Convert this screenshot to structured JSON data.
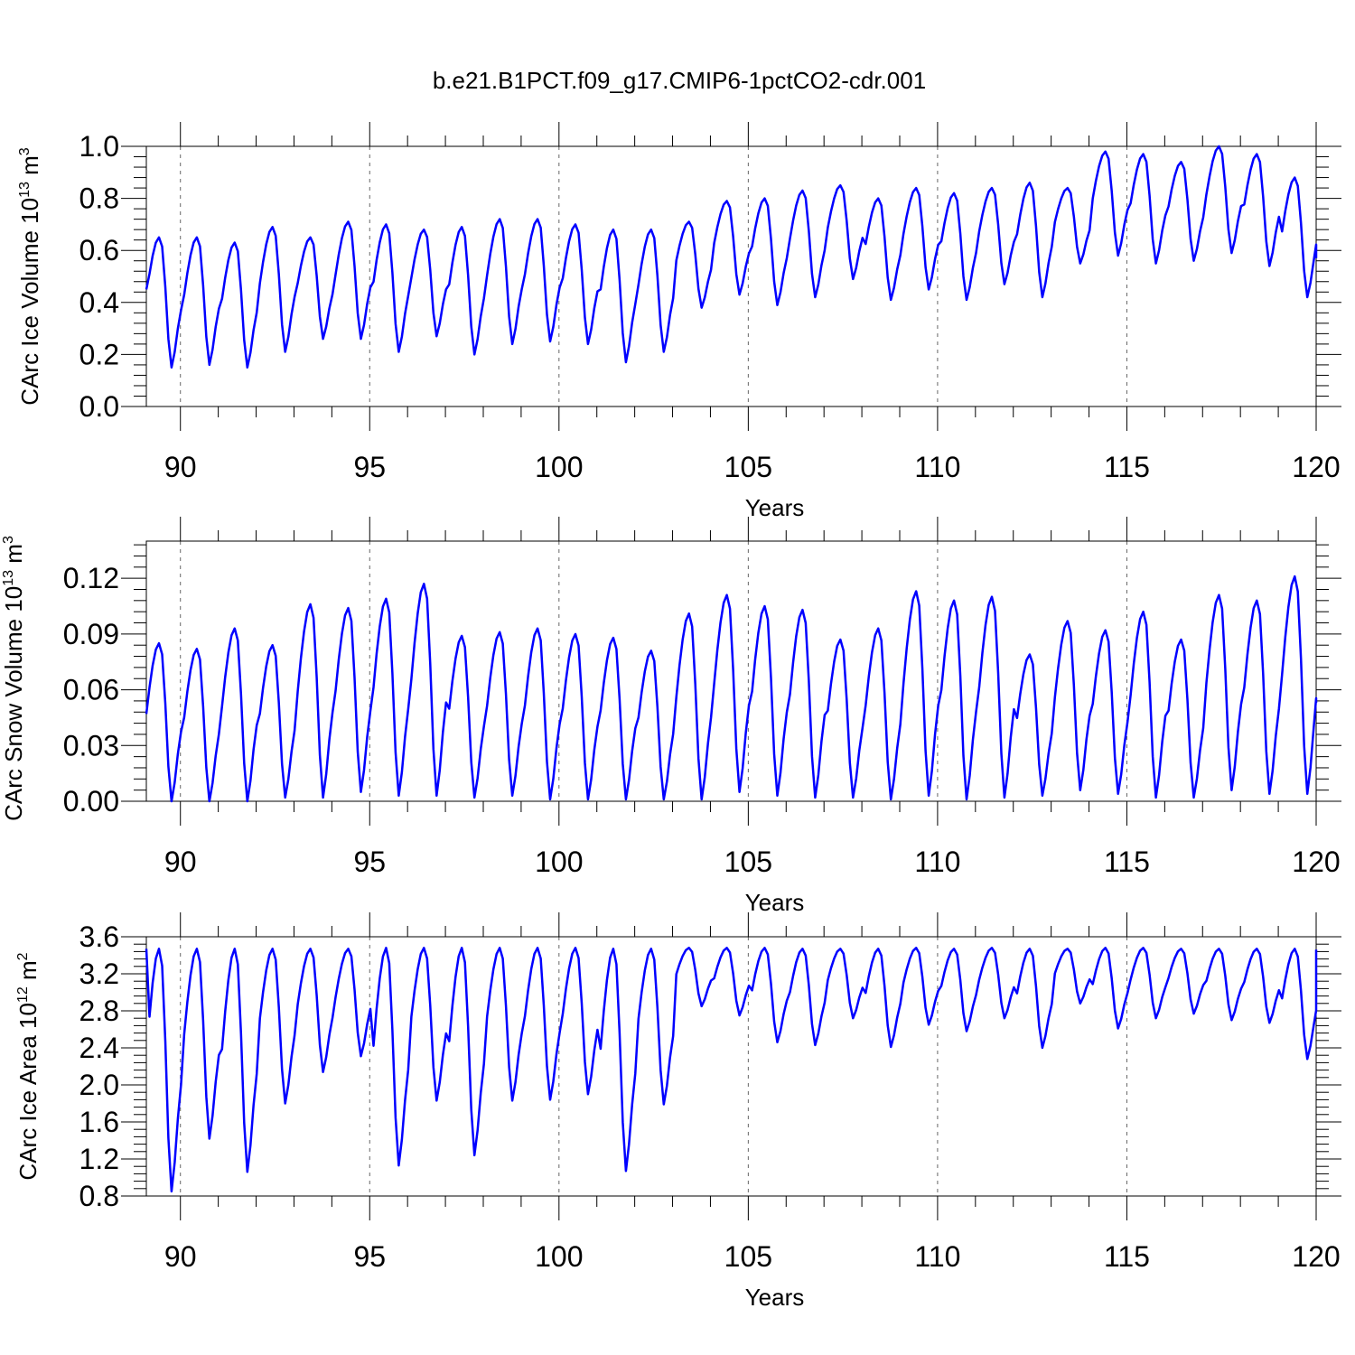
{
  "figure": {
    "title": "b.e21.B1PCT.f09_g17.CMIP6-1pctCO2-cdr.001",
    "series_color": "#0000ff",
    "grid_color": "#666666"
  },
  "chart_data": [
    {
      "type": "line",
      "title": "b.e21.B1PCT.f09_g17.CMIP6-1pctCO2-cdr.001",
      "xlabel": "Years",
      "ylabel": "CArc Ice Volume 10^13 m^3",
      "ylabel_parts": {
        "base": "CArc Ice Volume 10",
        "exp1": "13",
        "mid": " m",
        "exp2": "3"
      },
      "xlim": [
        89.1,
        120.0
      ],
      "ylim": [
        0.0,
        1.0
      ],
      "xticks": [
        90,
        95,
        100,
        105,
        110,
        115,
        120
      ],
      "xtick_labels": [
        "90",
        "95",
        "100",
        "105",
        "110",
        "115",
        "120"
      ],
      "yticks": [
        0.0,
        0.2,
        0.4,
        0.6,
        0.8,
        1.0
      ],
      "ytick_labels": [
        "0.0",
        "0.2",
        "0.4",
        "0.6",
        "0.8",
        "1.0"
      ],
      "grid": "dashed vertical at major x ticks",
      "series": [
        {
          "name": "CArc Ice Volume",
          "annual_min": [
            0.15,
            0.16,
            0.15,
            0.21,
            0.26,
            0.26,
            0.21,
            0.27,
            0.2,
            0.24,
            0.25,
            0.24,
            0.17,
            0.21,
            0.38,
            0.43,
            0.39,
            0.42,
            0.49,
            0.41,
            0.45,
            0.41,
            0.47,
            0.42,
            0.55,
            0.58,
            0.55,
            0.56,
            0.59,
            0.54,
            0.42
          ],
          "annual_max": [
            0.65,
            0.65,
            0.63,
            0.69,
            0.65,
            0.71,
            0.7,
            0.68,
            0.69,
            0.72,
            0.72,
            0.7,
            0.68,
            0.68,
            0.71,
            0.79,
            0.8,
            0.83,
            0.85,
            0.8,
            0.84,
            0.82,
            0.84,
            0.86,
            0.84,
            0.98,
            0.97,
            0.94,
            1.0,
            0.97,
            0.88
          ],
          "start_value": 0.45,
          "end_value": 0.57
        }
      ]
    },
    {
      "type": "line",
      "xlabel": "Years",
      "ylabel": "CArc Snow Volume 10^13 m^3",
      "ylabel_parts": {
        "base": "CArc Snow Volume 10",
        "exp1": "13",
        "mid": " m",
        "exp2": "3"
      },
      "xlim": [
        89.1,
        120.0
      ],
      "ylim": [
        0.0,
        0.14
      ],
      "xticks": [
        90,
        95,
        100,
        105,
        110,
        115,
        120
      ],
      "xtick_labels": [
        "90",
        "95",
        "100",
        "105",
        "110",
        "115",
        "120"
      ],
      "yticks": [
        0.0,
        0.03,
        0.06,
        0.09,
        0.12
      ],
      "ytick_labels": [
        "0.00",
        "0.03",
        "0.06",
        "0.09",
        "0.12"
      ],
      "grid": "dashed vertical at major x ticks",
      "series": [
        {
          "name": "CArc Snow Volume",
          "annual_min": [
            0.0,
            0.0,
            0.0,
            0.002,
            0.002,
            0.005,
            0.003,
            0.003,
            0.002,
            0.003,
            0.001,
            0.001,
            0.001,
            0.001,
            0.001,
            0.005,
            0.003,
            0.002,
            0.002,
            0.001,
            0.003,
            0.001,
            0.002,
            0.003,
            0.006,
            0.004,
            0.002,
            0.002,
            0.006,
            0.004,
            0.004
          ],
          "annual_max": [
            0.085,
            0.082,
            0.093,
            0.084,
            0.106,
            0.104,
            0.109,
            0.117,
            0.089,
            0.091,
            0.093,
            0.09,
            0.088,
            0.081,
            0.101,
            0.111,
            0.105,
            0.103,
            0.087,
            0.093,
            0.113,
            0.108,
            0.11,
            0.079,
            0.097,
            0.092,
            0.102,
            0.087,
            0.111,
            0.108,
            0.121
          ],
          "start_value": 0.047,
          "end_value": 0.053
        }
      ]
    },
    {
      "type": "line",
      "xlabel": "Years",
      "ylabel": "CArc Ice Area 10^12 m^2",
      "ylabel_parts": {
        "base": "CArc Ice Area 10",
        "exp1": "12",
        "mid": " m",
        "exp2": "2"
      },
      "xlim": [
        89.1,
        120.0
      ],
      "ylim": [
        0.8,
        3.6
      ],
      "xticks": [
        90,
        95,
        100,
        105,
        110,
        115,
        120
      ],
      "xtick_labels": [
        "90",
        "95",
        "100",
        "105",
        "110",
        "115",
        "120"
      ],
      "yticks": [
        0.8,
        1.2,
        1.6,
        2.0,
        2.4,
        2.8,
        3.2,
        3.6
      ],
      "ytick_labels": [
        "0.8",
        "1.2",
        "1.6",
        "2.0",
        "2.4",
        "2.8",
        "3.2",
        "3.6"
      ],
      "grid": "dashed vertical at major x ticks",
      "series": [
        {
          "name": "CArc Ice Area",
          "annual_min": [
            0.85,
            1.42,
            1.06,
            1.8,
            2.14,
            2.31,
            1.13,
            1.83,
            1.24,
            1.83,
            1.84,
            1.9,
            1.07,
            1.79,
            2.85,
            2.75,
            2.46,
            2.43,
            2.72,
            2.41,
            2.65,
            2.58,
            2.72,
            2.4,
            2.88,
            2.61,
            2.72,
            2.77,
            2.7,
            2.67,
            2.28
          ],
          "annual_max": [
            3.47,
            3.47,
            3.47,
            3.47,
            3.47,
            3.47,
            3.48,
            3.48,
            3.48,
            3.48,
            3.48,
            3.48,
            3.47,
            3.47,
            3.48,
            3.48,
            3.48,
            3.47,
            3.47,
            3.47,
            3.48,
            3.47,
            3.48,
            3.47,
            3.47,
            3.48,
            3.48,
            3.47,
            3.47,
            3.47,
            3.47
          ],
          "start_value": 3.47,
          "end_value": 3.46
        }
      ]
    }
  ]
}
